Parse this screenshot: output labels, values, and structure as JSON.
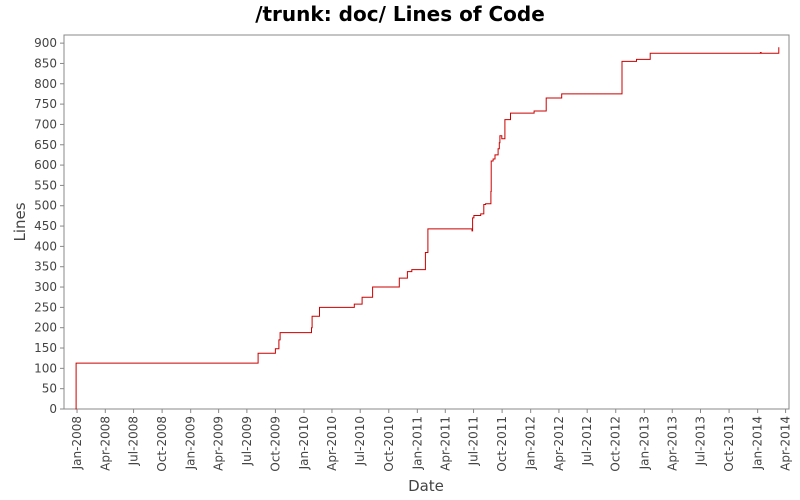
{
  "chart_data": {
    "type": "line",
    "title": "/trunk: doc/ Lines of Code",
    "xlabel": "Date",
    "ylabel": "Lines",
    "ylim": [
      0,
      920
    ],
    "xlim": [
      "2007-11-20",
      "2014-04-12"
    ],
    "yticks": [
      0,
      50,
      100,
      150,
      200,
      250,
      300,
      350,
      400,
      450,
      500,
      550,
      600,
      650,
      700,
      750,
      800,
      850,
      900
    ],
    "xticks": [
      {
        "date": "2008-01-01",
        "label": "Jan-2008"
      },
      {
        "date": "2008-04-01",
        "label": "Apr-2008"
      },
      {
        "date": "2008-07-01",
        "label": "Jul-2008"
      },
      {
        "date": "2008-10-01",
        "label": "Oct-2008"
      },
      {
        "date": "2009-01-01",
        "label": "Jan-2009"
      },
      {
        "date": "2009-04-01",
        "label": "Apr-2009"
      },
      {
        "date": "2009-07-01",
        "label": "Jul-2009"
      },
      {
        "date": "2009-10-01",
        "label": "Oct-2009"
      },
      {
        "date": "2010-01-01",
        "label": "Jan-2010"
      },
      {
        "date": "2010-04-01",
        "label": "Apr-2010"
      },
      {
        "date": "2010-07-01",
        "label": "Jul-2010"
      },
      {
        "date": "2010-10-01",
        "label": "Oct-2010"
      },
      {
        "date": "2011-01-01",
        "label": "Jan-2011"
      },
      {
        "date": "2011-04-01",
        "label": "Apr-2011"
      },
      {
        "date": "2011-07-01",
        "label": "Jul-2011"
      },
      {
        "date": "2011-10-01",
        "label": "Oct-2011"
      },
      {
        "date": "2012-01-01",
        "label": "Jan-2012"
      },
      {
        "date": "2012-04-01",
        "label": "Apr-2012"
      },
      {
        "date": "2012-07-01",
        "label": "Jul-2012"
      },
      {
        "date": "2012-10-01",
        "label": "Oct-2012"
      },
      {
        "date": "2013-01-01",
        "label": "Jan-2013"
      },
      {
        "date": "2013-04-01",
        "label": "Apr-2013"
      },
      {
        "date": "2013-07-01",
        "label": "Jul-2013"
      },
      {
        "date": "2013-10-01",
        "label": "Oct-2013"
      },
      {
        "date": "2014-01-01",
        "label": "Jan-2014"
      },
      {
        "date": "2014-04-01",
        "label": "Apr-2014"
      }
    ],
    "grid": false,
    "line_color": "#cc0000",
    "series": [
      {
        "step": true,
        "points": [
          {
            "x": "2007-12-27",
            "y": 0
          },
          {
            "x": "2007-12-29",
            "y": 113
          },
          {
            "x": "2009-08-05",
            "y": 113
          },
          {
            "x": "2009-08-06",
            "y": 137
          },
          {
            "x": "2009-09-30",
            "y": 137
          },
          {
            "x": "2009-10-01",
            "y": 148
          },
          {
            "x": "2009-10-10",
            "y": 148
          },
          {
            "x": "2009-10-12",
            "y": 170
          },
          {
            "x": "2009-10-16",
            "y": 188
          },
          {
            "x": "2010-01-23",
            "y": 188
          },
          {
            "x": "2010-01-25",
            "y": 200
          },
          {
            "x": "2010-01-27",
            "y": 228
          },
          {
            "x": "2010-02-18",
            "y": 228
          },
          {
            "x": "2010-02-20",
            "y": 250
          },
          {
            "x": "2010-06-10",
            "y": 250
          },
          {
            "x": "2010-06-12",
            "y": 258
          },
          {
            "x": "2010-07-05",
            "y": 258
          },
          {
            "x": "2010-07-07",
            "y": 275
          },
          {
            "x": "2010-08-08",
            "y": 275
          },
          {
            "x": "2010-08-10",
            "y": 300
          },
          {
            "x": "2010-11-02",
            "y": 300
          },
          {
            "x": "2010-11-04",
            "y": 322
          },
          {
            "x": "2010-11-28",
            "y": 322
          },
          {
            "x": "2010-11-30",
            "y": 338
          },
          {
            "x": "2010-12-14",
            "y": 343
          },
          {
            "x": "2011-01-25",
            "y": 343
          },
          {
            "x": "2011-01-27",
            "y": 385
          },
          {
            "x": "2011-02-02",
            "y": 385
          },
          {
            "x": "2011-02-04",
            "y": 443
          },
          {
            "x": "2011-06-25",
            "y": 443
          },
          {
            "x": "2011-06-26",
            "y": 438
          },
          {
            "x": "2011-06-28",
            "y": 470
          },
          {
            "x": "2011-07-02",
            "y": 476
          },
          {
            "x": "2011-07-22",
            "y": 476
          },
          {
            "x": "2011-07-24",
            "y": 480
          },
          {
            "x": "2011-08-01",
            "y": 480
          },
          {
            "x": "2011-08-03",
            "y": 503
          },
          {
            "x": "2011-08-09",
            "y": 505
          },
          {
            "x": "2011-08-25",
            "y": 505
          },
          {
            "x": "2011-08-26",
            "y": 535
          },
          {
            "x": "2011-08-27",
            "y": 610
          },
          {
            "x": "2011-09-02",
            "y": 615
          },
          {
            "x": "2011-09-08",
            "y": 625
          },
          {
            "x": "2011-09-18",
            "y": 640
          },
          {
            "x": "2011-09-22",
            "y": 655
          },
          {
            "x": "2011-09-24",
            "y": 672
          },
          {
            "x": "2011-09-30",
            "y": 665
          },
          {
            "x": "2011-10-08",
            "y": 665
          },
          {
            "x": "2011-10-10",
            "y": 712
          },
          {
            "x": "2011-10-26",
            "y": 712
          },
          {
            "x": "2011-10-28",
            "y": 728
          },
          {
            "x": "2012-01-10",
            "y": 728
          },
          {
            "x": "2012-01-12",
            "y": 733
          },
          {
            "x": "2012-02-18",
            "y": 733
          },
          {
            "x": "2012-02-20",
            "y": 765
          },
          {
            "x": "2012-04-08",
            "y": 765
          },
          {
            "x": "2012-04-10",
            "y": 775
          },
          {
            "x": "2012-10-19",
            "y": 775
          },
          {
            "x": "2012-10-21",
            "y": 855
          },
          {
            "x": "2012-12-05",
            "y": 855
          },
          {
            "x": "2012-12-07",
            "y": 860
          },
          {
            "x": "2013-01-18",
            "y": 860
          },
          {
            "x": "2013-01-20",
            "y": 875
          },
          {
            "x": "2014-01-08",
            "y": 875
          },
          {
            "x": "2014-01-10",
            "y": 877
          },
          {
            "x": "2014-01-12",
            "y": 875
          },
          {
            "x": "2014-03-08",
            "y": 875
          },
          {
            "x": "2014-03-10",
            "y": 890
          }
        ]
      }
    ]
  }
}
